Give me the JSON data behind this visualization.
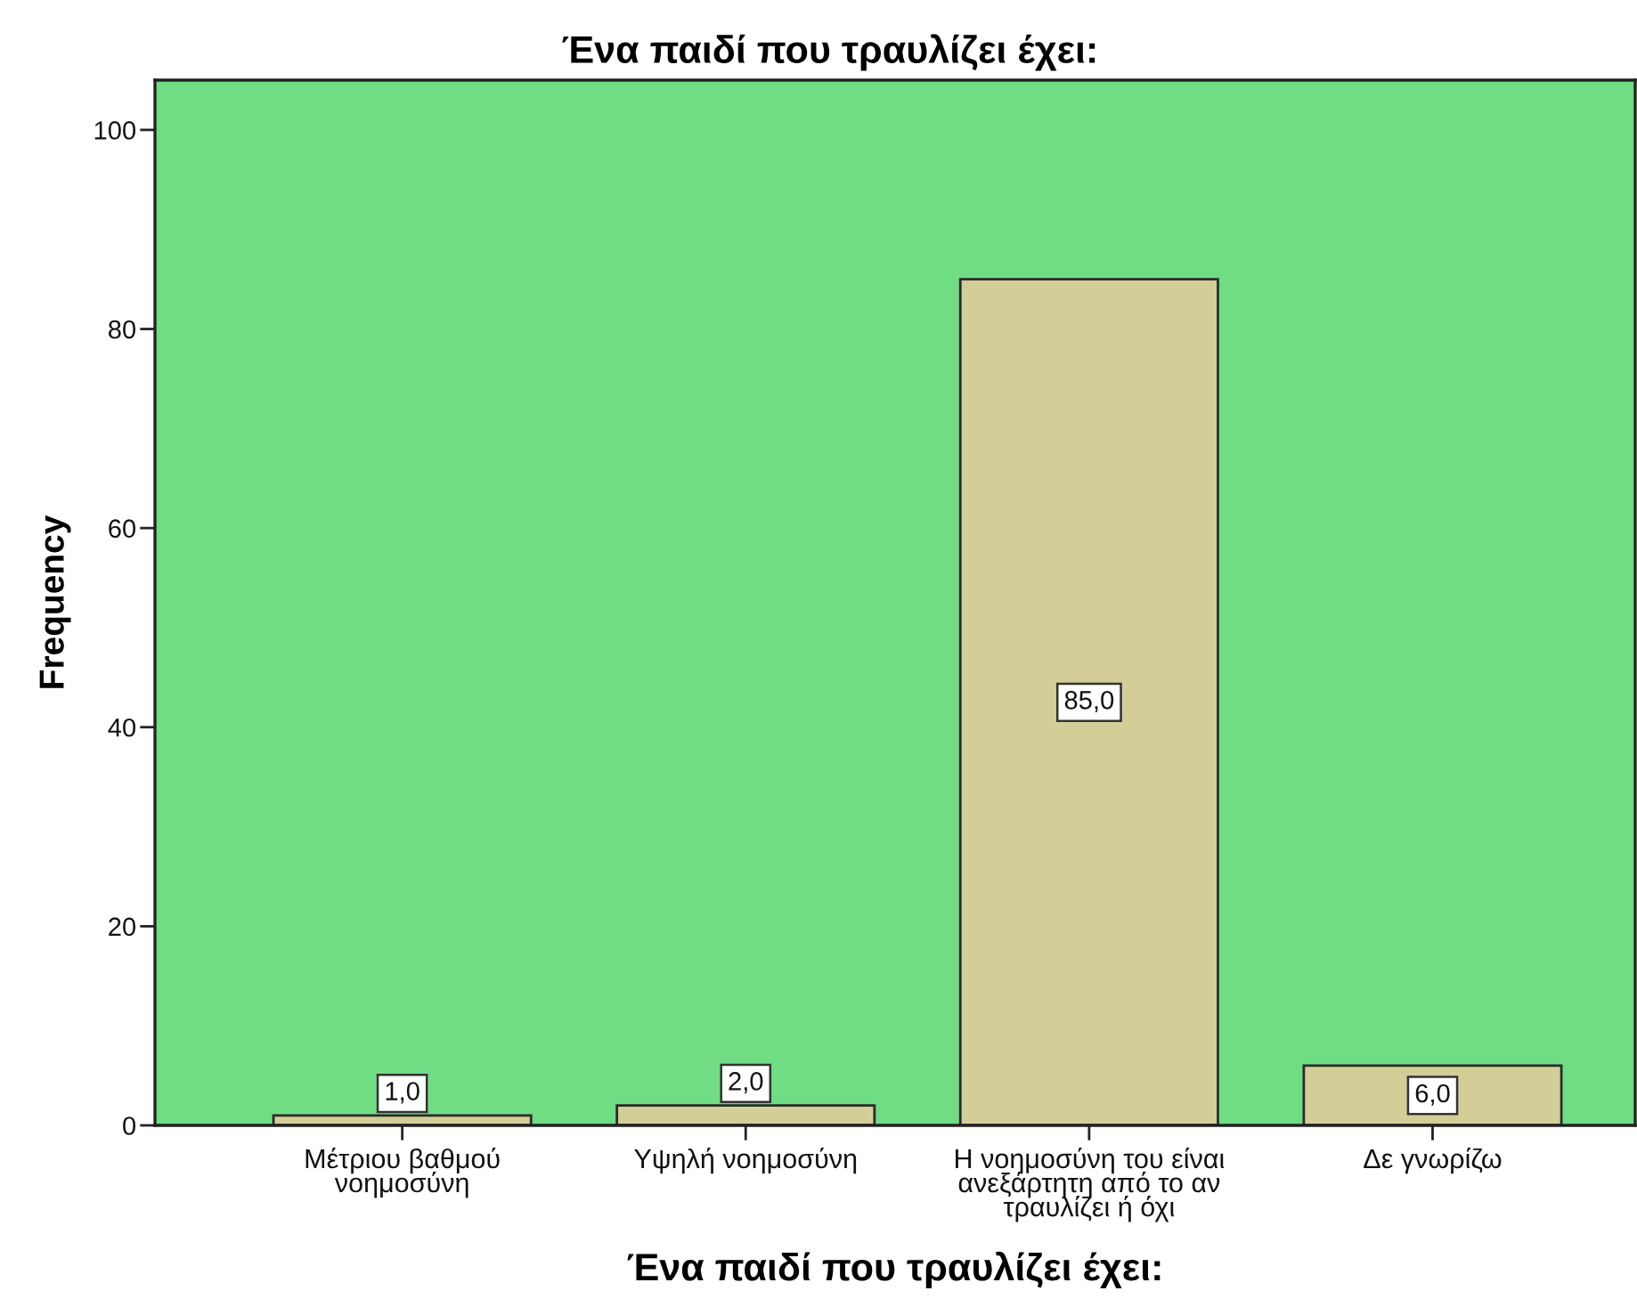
{
  "chart_data": {
    "type": "bar",
    "title": "Ένα παιδί που τραυλίζει έχει:",
    "xlabel": "Ένα παιδί που τραυλίζει έχει:",
    "ylabel": "Frequency",
    "categories": [
      "Μέτριου βαθμού\nνοημοσύνη",
      "Υψηλή νοημοσύνη",
      "Η νοημοσύνη του είναι\nανεξάρτητη από το αν\nτραυλίζει ή όχι",
      "Δε γνωρίζω"
    ],
    "values": [
      1,
      2,
      85,
      6
    ],
    "value_labels": [
      "1,0",
      "2,0",
      "85,0",
      "6,0"
    ],
    "color": "#d3ce97",
    "ylim": [
      0,
      105
    ],
    "yticks": [
      0,
      20,
      40,
      60,
      80,
      100
    ],
    "grid": false,
    "legend": false
  }
}
